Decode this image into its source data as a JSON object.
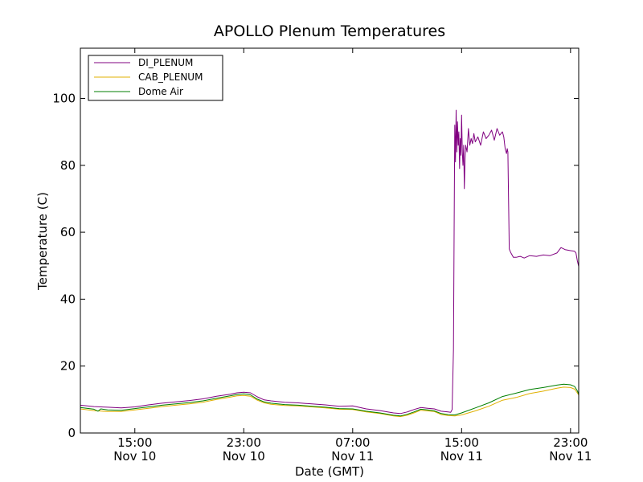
{
  "chart_data": {
    "type": "line",
    "title": "APOLLO Plenum Temperatures",
    "xlabel": "Date (GMT)",
    "ylabel": "Temperature (C)",
    "x_unit": "hours since Nov 10 00:00 GMT",
    "xlim": [
      11.0,
      47.6
    ],
    "ylim": [
      0,
      115
    ],
    "y_ticks": [
      0,
      20,
      40,
      60,
      80,
      100
    ],
    "x_ticks": [
      {
        "x": 15,
        "time": "15:00",
        "date": "Nov 10"
      },
      {
        "x": 23,
        "time": "23:00",
        "date": "Nov 10"
      },
      {
        "x": 31,
        "time": "07:00",
        "date": "Nov 11"
      },
      {
        "x": 39,
        "time": "15:00",
        "date": "Nov 11"
      },
      {
        "x": 47,
        "time": "23:00",
        "date": "Nov 11"
      }
    ],
    "legend_location": "top-left",
    "series": [
      {
        "name": "DI_PLENUM",
        "color": "#800080",
        "points": [
          [
            11.0,
            8.3
          ],
          [
            12.0,
            7.9
          ],
          [
            13.0,
            7.7
          ],
          [
            14.0,
            7.5
          ],
          [
            15.0,
            7.8
          ],
          [
            16.0,
            8.4
          ],
          [
            17.0,
            8.9
          ],
          [
            18.0,
            9.3
          ],
          [
            19.0,
            9.7
          ],
          [
            20.0,
            10.2
          ],
          [
            21.0,
            11.0
          ],
          [
            22.0,
            11.6
          ],
          [
            22.5,
            12.0
          ],
          [
            23.0,
            12.2
          ],
          [
            23.5,
            12.0
          ],
          [
            24.0,
            10.8
          ],
          [
            24.5,
            9.9
          ],
          [
            25.0,
            9.6
          ],
          [
            26.0,
            9.2
          ],
          [
            27.0,
            9.0
          ],
          [
            28.0,
            8.7
          ],
          [
            29.0,
            8.4
          ],
          [
            30.0,
            8.0
          ],
          [
            31.0,
            8.1
          ],
          [
            32.0,
            7.2
          ],
          [
            33.0,
            6.7
          ],
          [
            34.0,
            6.0
          ],
          [
            34.5,
            5.8
          ],
          [
            35.0,
            6.3
          ],
          [
            35.5,
            7.0
          ],
          [
            36.0,
            7.6
          ],
          [
            36.5,
            7.4
          ],
          [
            37.0,
            7.2
          ],
          [
            37.5,
            6.5
          ],
          [
            38.0,
            6.3
          ],
          [
            38.2,
            6.2
          ],
          [
            38.3,
            7.0
          ],
          [
            38.4,
            25.0
          ],
          [
            38.45,
            60.0
          ],
          [
            38.5,
            92.0
          ],
          [
            38.55,
            81.0
          ],
          [
            38.6,
            96.5
          ],
          [
            38.65,
            84.0
          ],
          [
            38.7,
            93.0
          ],
          [
            38.75,
            86.0
          ],
          [
            38.8,
            90.0
          ],
          [
            38.85,
            79.0
          ],
          [
            38.9,
            88.0
          ],
          [
            38.95,
            83.0
          ],
          [
            39.0,
            95.0
          ],
          [
            39.05,
            84.0
          ],
          [
            39.1,
            80.0
          ],
          [
            39.15,
            86.0
          ],
          [
            39.2,
            73.0
          ],
          [
            39.25,
            82.0
          ],
          [
            39.3,
            86.0
          ],
          [
            39.4,
            84.0
          ],
          [
            39.5,
            91.0
          ],
          [
            39.6,
            86.0
          ],
          [
            39.7,
            88.0
          ],
          [
            39.8,
            86.5
          ],
          [
            39.9,
            89.5
          ],
          [
            40.0,
            87.0
          ],
          [
            40.2,
            88.5
          ],
          [
            40.4,
            86.0
          ],
          [
            40.6,
            90.0
          ],
          [
            40.8,
            88.0
          ],
          [
            41.0,
            89.0
          ],
          [
            41.2,
            90.5
          ],
          [
            41.4,
            87.5
          ],
          [
            41.6,
            91.0
          ],
          [
            41.8,
            89.0
          ],
          [
            42.0,
            90.0
          ],
          [
            42.1,
            88.5
          ],
          [
            42.2,
            85.0
          ],
          [
            42.3,
            83.5
          ],
          [
            42.35,
            85.0
          ],
          [
            42.4,
            84.0
          ],
          [
            42.5,
            55.0
          ],
          [
            42.6,
            54.0
          ],
          [
            42.8,
            52.5
          ],
          [
            43.0,
            52.5
          ],
          [
            43.3,
            52.8
          ],
          [
            43.6,
            52.3
          ],
          [
            44.0,
            53.0
          ],
          [
            44.5,
            52.8
          ],
          [
            45.0,
            53.2
          ],
          [
            45.5,
            53.0
          ],
          [
            46.0,
            53.8
          ],
          [
            46.3,
            55.4
          ],
          [
            46.6,
            54.8
          ],
          [
            47.0,
            54.5
          ],
          [
            47.3,
            54.3
          ],
          [
            47.4,
            53.8
          ],
          [
            47.5,
            51.5
          ],
          [
            47.6,
            49.8
          ]
        ]
      },
      {
        "name": "CAB_PLENUM",
        "color": "#e0b000",
        "points": [
          [
            11.0,
            7.2
          ],
          [
            12.0,
            6.7
          ],
          [
            13.0,
            6.4
          ],
          [
            14.0,
            6.4
          ],
          [
            15.0,
            6.9
          ],
          [
            16.0,
            7.4
          ],
          [
            17.0,
            7.9
          ],
          [
            18.0,
            8.3
          ],
          [
            19.0,
            8.7
          ],
          [
            20.0,
            9.2
          ],
          [
            21.0,
            10.0
          ],
          [
            22.0,
            10.7
          ],
          [
            22.5,
            11.1
          ],
          [
            23.0,
            11.2
          ],
          [
            23.5,
            11.0
          ],
          [
            24.0,
            9.8
          ],
          [
            24.5,
            9.0
          ],
          [
            25.0,
            8.6
          ],
          [
            26.0,
            8.2
          ],
          [
            27.0,
            8.1
          ],
          [
            28.0,
            7.8
          ],
          [
            29.0,
            7.5
          ],
          [
            30.0,
            7.1
          ],
          [
            31.0,
            7.0
          ],
          [
            32.0,
            6.3
          ],
          [
            33.0,
            5.8
          ],
          [
            34.0,
            5.1
          ],
          [
            34.5,
            4.9
          ],
          [
            35.0,
            5.3
          ],
          [
            35.5,
            6.0
          ],
          [
            36.0,
            6.8
          ],
          [
            36.5,
            6.6
          ],
          [
            37.0,
            6.4
          ],
          [
            37.5,
            5.5
          ],
          [
            38.0,
            5.2
          ],
          [
            38.5,
            5.1
          ],
          [
            39.0,
            5.4
          ],
          [
            40.0,
            6.6
          ],
          [
            41.0,
            8.0
          ],
          [
            42.0,
            9.8
          ],
          [
            43.0,
            10.6
          ],
          [
            44.0,
            11.8
          ],
          [
            45.0,
            12.5
          ],
          [
            46.0,
            13.4
          ],
          [
            46.5,
            13.7
          ],
          [
            47.0,
            13.6
          ],
          [
            47.3,
            13.1
          ],
          [
            47.5,
            12.0
          ],
          [
            47.6,
            11.3
          ]
        ]
      },
      {
        "name": "Dome Air",
        "color": "#007f00",
        "points": [
          [
            11.0,
            7.6
          ],
          [
            12.0,
            7.1
          ],
          [
            12.3,
            6.5
          ],
          [
            12.5,
            7.2
          ],
          [
            13.0,
            6.9
          ],
          [
            14.0,
            6.8
          ],
          [
            15.0,
            7.3
          ],
          [
            16.0,
            7.8
          ],
          [
            17.0,
            8.3
          ],
          [
            18.0,
            8.7
          ],
          [
            19.0,
            9.1
          ],
          [
            20.0,
            9.6
          ],
          [
            21.0,
            10.4
          ],
          [
            22.0,
            11.1
          ],
          [
            22.5,
            11.5
          ],
          [
            23.0,
            11.7
          ],
          [
            23.5,
            11.4
          ],
          [
            24.0,
            10.1
          ],
          [
            24.5,
            9.3
          ],
          [
            25.0,
            8.9
          ],
          [
            26.0,
            8.5
          ],
          [
            27.0,
            8.3
          ],
          [
            28.0,
            8.0
          ],
          [
            29.0,
            7.7
          ],
          [
            30.0,
            7.3
          ],
          [
            31.0,
            7.2
          ],
          [
            32.0,
            6.5
          ],
          [
            33.0,
            6.0
          ],
          [
            34.0,
            5.3
          ],
          [
            34.5,
            5.1
          ],
          [
            35.0,
            5.6
          ],
          [
            35.5,
            6.3
          ],
          [
            36.0,
            7.1
          ],
          [
            36.5,
            6.9
          ],
          [
            37.0,
            6.6
          ],
          [
            37.5,
            5.8
          ],
          [
            38.0,
            5.5
          ],
          [
            38.5,
            5.4
          ],
          [
            39.0,
            6.0
          ],
          [
            40.0,
            7.5
          ],
          [
            41.0,
            9.0
          ],
          [
            42.0,
            10.9
          ],
          [
            43.0,
            11.9
          ],
          [
            44.0,
            13.0
          ],
          [
            45.0,
            13.6
          ],
          [
            46.0,
            14.3
          ],
          [
            46.5,
            14.6
          ],
          [
            47.0,
            14.4
          ],
          [
            47.3,
            13.9
          ],
          [
            47.5,
            12.6
          ],
          [
            47.6,
            11.6
          ]
        ]
      }
    ]
  }
}
